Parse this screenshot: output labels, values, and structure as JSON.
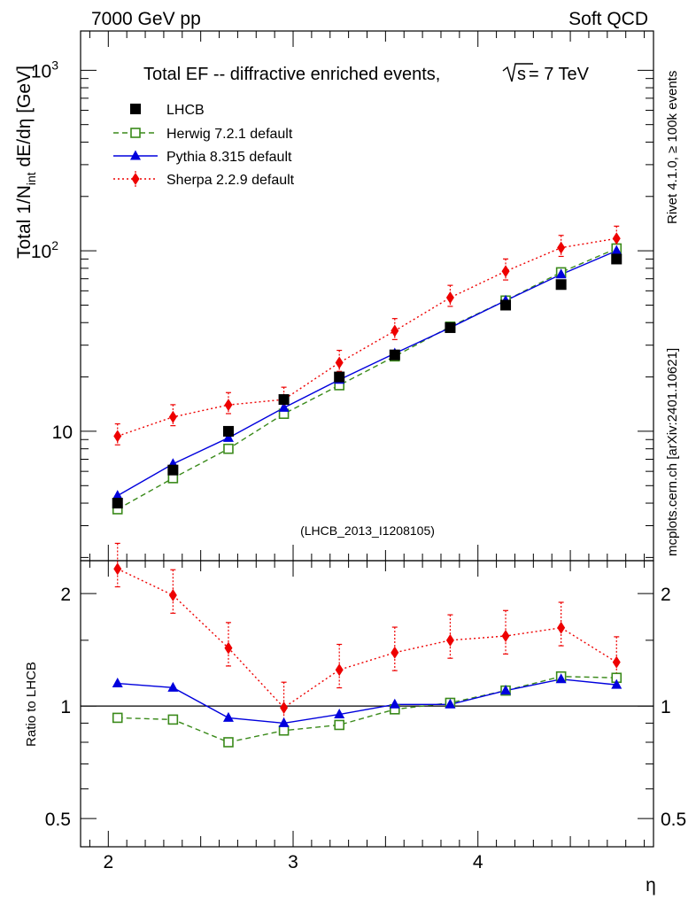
{
  "header": {
    "left": "7000 GeV pp",
    "right": "Soft QCD"
  },
  "side_labels": {
    "rivet": "Rivet 4.1.0, ≥ 100k events",
    "mcplots": "mcplots.cern.ch [arXiv:2401.10621]"
  },
  "colors": {
    "data": "#000000",
    "herwig": "#3a8a1a",
    "pythia": "#0000dd",
    "sherpa": "#ee0000",
    "watermark": "#999999"
  },
  "chart_data": [
    {
      "panel": "main",
      "type": "line",
      "title_prefix": "Total EF -- diffractive enriched events,",
      "title_sqrt": "s",
      "title_suffix": "= 7 TeV",
      "ylabel_main": "Total 1/N",
      "ylabel_sub": "int",
      "ylabel_tail": "  dE/dη [GeV]",
      "yscale": "log",
      "ylim": [
        1.92,
        1650
      ],
      "xlim": [
        1.85,
        4.95
      ],
      "yticks": [
        {
          "value": 10,
          "label": "10"
        },
        {
          "value": 100,
          "label": "10",
          "sup": "2"
        },
        {
          "value": 1000,
          "label": "10",
          "sup": "3"
        }
      ],
      "watermark": "(LHCB_2013_I1208105)",
      "x": [
        2.05,
        2.35,
        2.65,
        2.95,
        3.25,
        3.55,
        3.85,
        4.15,
        4.45,
        4.75
      ],
      "series": [
        {
          "key": "data",
          "name": "LHCB",
          "marker": "square",
          "line": "none",
          "values": [
            4.0,
            6.1,
            10.0,
            15.0,
            20.0,
            26.5,
            37.5,
            50.0,
            65.0,
            90.0
          ]
        },
        {
          "key": "herwig",
          "name": "Herwig 7.2.1 default",
          "marker": "open-square",
          "line": "dashed",
          "values": [
            3.7,
            5.5,
            8.0,
            12.5,
            18.0,
            26.0,
            38.0,
            53.0,
            76.0,
            103.0
          ]
        },
        {
          "key": "pythia",
          "name": "Pythia 8.315 default",
          "marker": "triangle",
          "line": "solid",
          "values": [
            4.4,
            6.6,
            9.2,
            13.5,
            19.3,
            27.0,
            37.5,
            53.0,
            74.0,
            100.0
          ]
        },
        {
          "key": "sherpa",
          "name": "Sherpa 2.2.9 default",
          "marker": "diamond",
          "line": "dotted",
          "values": [
            9.4,
            12.0,
            14.0,
            15.0,
            24.0,
            36.0,
            55.0,
            77.0,
            104.0,
            117.0
          ],
          "err_rel": 0.17
        }
      ]
    },
    {
      "panel": "ratio",
      "type": "line",
      "ylabel": "Ratio to LHCB",
      "xlabel": "η",
      "yscale": "log",
      "ylim": [
        0.42,
        2.45
      ],
      "xlim": [
        1.85,
        4.95
      ],
      "reference_line": 1,
      "yticks": [
        {
          "value": 0.5,
          "label": "0.5"
        },
        {
          "value": 1,
          "label": "1"
        },
        {
          "value": 2,
          "label": "2"
        }
      ],
      "xticks": [
        {
          "value": 2,
          "label": "2"
        },
        {
          "value": 3,
          "label": "3"
        },
        {
          "value": 4,
          "label": "4"
        }
      ],
      "x": [
        2.05,
        2.35,
        2.65,
        2.95,
        3.25,
        3.55,
        3.85,
        4.15,
        4.45,
        4.75
      ],
      "series": [
        {
          "key": "herwig",
          "name": "Herwig 7.2.1 default",
          "marker": "open-square",
          "line": "dashed",
          "values": [
            0.93,
            0.92,
            0.8,
            0.86,
            0.89,
            0.98,
            1.02,
            1.1,
            1.2,
            1.19
          ]
        },
        {
          "key": "pythia",
          "name": "Pythia 8.315 default",
          "marker": "triangle",
          "line": "solid",
          "values": [
            1.15,
            1.12,
            0.93,
            0.9,
            0.95,
            1.01,
            1.01,
            1.1,
            1.18,
            1.14
          ]
        },
        {
          "key": "sherpa",
          "name": "Sherpa 2.2.9 default",
          "marker": "diamond",
          "line": "dotted",
          "values": [
            2.33,
            1.98,
            1.43,
            0.99,
            1.25,
            1.39,
            1.5,
            1.54,
            1.62,
            1.31
          ],
          "err_rel": 0.17
        }
      ]
    }
  ]
}
